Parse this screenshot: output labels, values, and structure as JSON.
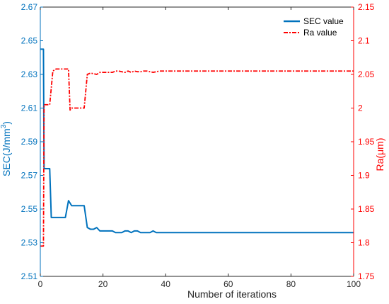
{
  "chart_data": {
    "type": "line",
    "title": "",
    "xlabel": "Number of iterations",
    "ylabel_left": "SEC(J/mm",
    "ylabel_left_superscript": "3",
    "ylabel_left_suffix": ")",
    "ylabel_right": "Ra(μm)",
    "xlim": [
      0,
      100
    ],
    "ylim_left": [
      2.51,
      2.67
    ],
    "ylim_right": [
      1.75,
      2.15
    ],
    "xticks": [
      "0",
      "20",
      "40",
      "60",
      "80",
      "100"
    ],
    "yticks_left": [
      "2.51",
      "2.53",
      "2.55",
      "2.57",
      "2.59",
      "2.61",
      "2.63",
      "2.65",
      "2.67"
    ],
    "yticks_right": [
      "1.75",
      "1.8",
      "1.85",
      "1.9",
      "1.95",
      "2",
      "2.05",
      "2.1",
      "2.15"
    ],
    "grid": false,
    "legend_position": "top-right",
    "series": [
      {
        "name": "SEC value",
        "axis": "left",
        "color": "#0072BD",
        "style": "solid",
        "x": [
          0,
          1,
          1.2,
          3,
          3.5,
          8,
          9,
          10,
          11,
          13,
          14,
          15,
          16,
          17,
          18,
          19,
          20,
          22,
          23,
          24,
          25,
          26,
          27,
          28,
          29,
          30,
          31,
          32,
          33,
          34,
          35,
          36,
          37,
          38,
          39,
          40,
          100
        ],
        "y": [
          2.645,
          2.645,
          2.574,
          2.574,
          2.545,
          2.545,
          2.555,
          2.552,
          2.552,
          2.552,
          2.552,
          2.539,
          2.538,
          2.538,
          2.539,
          2.537,
          2.537,
          2.537,
          2.537,
          2.536,
          2.536,
          2.536,
          2.537,
          2.537,
          2.536,
          2.537,
          2.537,
          2.536,
          2.536,
          2.536,
          2.536,
          2.537,
          2.536,
          2.536,
          2.536,
          2.536,
          2.536
        ]
      },
      {
        "name": "Ra value",
        "axis": "right",
        "color": "#FF0000",
        "style": "dashdot",
        "x": [
          0,
          1,
          1.2,
          3,
          4,
          5,
          9,
          9.5,
          10,
          11,
          13,
          14,
          15,
          16,
          18,
          19,
          20,
          22,
          23,
          24,
          25,
          26,
          27,
          28,
          29,
          30,
          31,
          32,
          33,
          34,
          35,
          36,
          37,
          38,
          39,
          40,
          100
        ],
        "y": [
          1.795,
          1.795,
          2.005,
          2.005,
          2.055,
          2.058,
          2.058,
          1.997,
          2.0,
          2.0,
          2.0,
          2.0,
          2.05,
          2.052,
          2.05,
          2.053,
          2.053,
          2.053,
          2.053,
          2.055,
          2.055,
          2.054,
          2.053,
          2.055,
          2.053,
          2.055,
          2.054,
          2.054,
          2.055,
          2.055,
          2.054,
          2.053,
          2.054,
          2.055,
          2.055,
          2.055,
          2.055
        ]
      }
    ]
  }
}
